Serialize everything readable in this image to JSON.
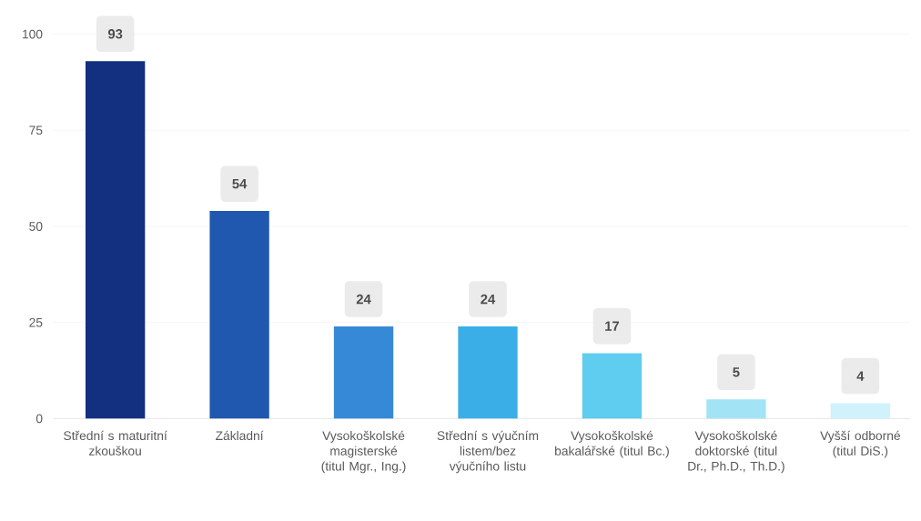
{
  "chart_data": {
    "type": "bar",
    "categories": [
      "Střední s maturitní zkouškou",
      "Základní",
      "Vysokoškolské magisterské (titul Mgr., Ing.)",
      "Střední s výučním listem/bez výučního listu",
      "Vysokoškolské bakalářské (titul Bc.)",
      "Vysokoškolské doktorské (titul Dr., Ph.D., Th.D.)",
      "Vyšší odborné (titul DiS.)"
    ],
    "values": [
      93,
      54,
      24,
      24,
      17,
      5,
      4
    ],
    "colors": [
      "#132f80",
      "#1f58ae",
      "#3689d7",
      "#3aafe7",
      "#5ecdef",
      "#a2e3f6",
      "#cff2fb"
    ],
    "ylim": [
      0,
      100
    ],
    "yticks": [
      0,
      25,
      50,
      75,
      100
    ],
    "grid": "y",
    "data_labels": true
  }
}
